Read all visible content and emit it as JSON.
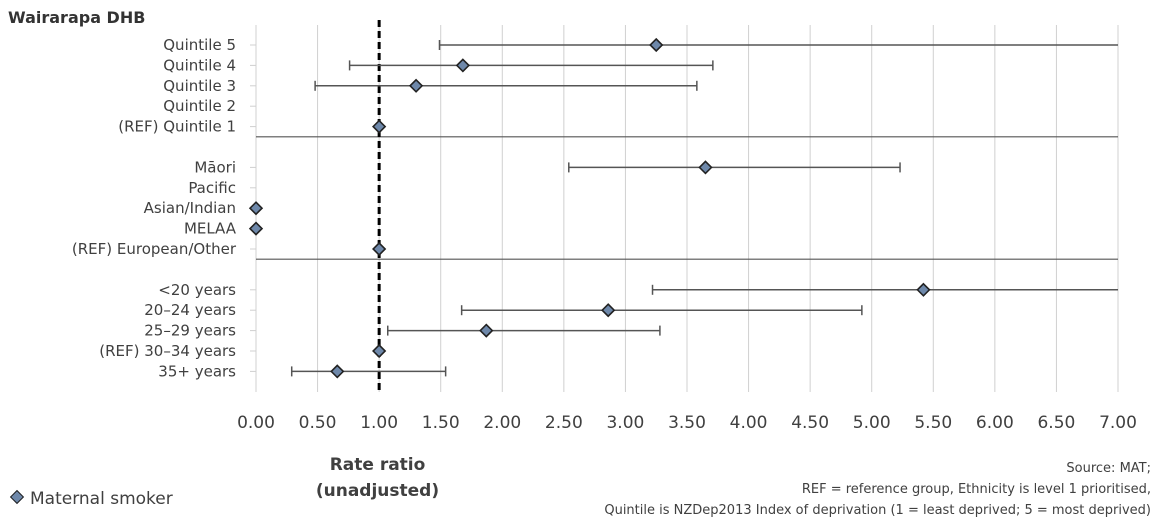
{
  "chart_data": {
    "type": "scatter",
    "title": "Wairarapa DHB",
    "xlabel_line1": "Rate ratio",
    "xlabel_line2": "(unadjusted)",
    "xlim": [
      0,
      7
    ],
    "x_ticks": [
      "0.00",
      "0.50",
      "1.00",
      "1.50",
      "2.00",
      "2.50",
      "3.00",
      "3.50",
      "4.00",
      "4.50",
      "5.00",
      "5.50",
      "6.00",
      "6.50",
      "7.00"
    ],
    "reference_line": 1.0,
    "legend": {
      "label": "Maternal smoker",
      "placement": "bottom-left"
    },
    "grid": true,
    "groups": [
      {
        "items": [
          {
            "label": "Quintile 5",
            "value": 3.25,
            "lower": 1.49,
            "upper": 7.0
          },
          {
            "label": "Quintile 4",
            "value": 1.68,
            "lower": 0.76,
            "upper": 3.71
          },
          {
            "label": "Quintile 3",
            "value": 1.3,
            "lower": 0.48,
            "upper": 3.58
          },
          {
            "label": "Quintile 2",
            "value": null,
            "lower": null,
            "upper": null
          },
          {
            "label": "(REF) Quintile 1",
            "value": 1.0,
            "lower": null,
            "upper": null
          }
        ]
      },
      {
        "items": [
          {
            "label": "Māori",
            "value": 3.65,
            "lower": 2.54,
            "upper": 5.23
          },
          {
            "label": "Pacific",
            "value": null,
            "lower": null,
            "upper": null
          },
          {
            "label": "Asian/Indian",
            "value": 0.0,
            "lower": null,
            "upper": null
          },
          {
            "label": "MELAA",
            "value": 0.0,
            "lower": null,
            "upper": null
          },
          {
            "label": "(REF) European/Other",
            "value": 1.0,
            "lower": null,
            "upper": null
          }
        ]
      },
      {
        "items": [
          {
            "label": "<20 years",
            "value": 5.42,
            "lower": 3.22,
            "upper": 7.0
          },
          {
            "label": "20–24 years",
            "value": 2.86,
            "lower": 1.67,
            "upper": 4.92
          },
          {
            "label": "25–29 years",
            "value": 1.87,
            "lower": 1.07,
            "upper": 3.28
          },
          {
            "label": "(REF) 30–34 years",
            "value": 1.0,
            "lower": null,
            "upper": null
          },
          {
            "label": "35+ years",
            "value": 0.66,
            "lower": 0.29,
            "upper": 1.54
          }
        ]
      }
    ],
    "source_lines": [
      "Source: MAT;",
      "REF = reference group, Ethnicity is level 1 prioritised,",
      "Quintile is NZDep2013 Index of deprivation (1 = least deprived; 5 = most deprived)"
    ]
  },
  "colors": {
    "marker_fill": "#6e88aa",
    "marker_stroke": "#222222",
    "grid": "#d0d0d0",
    "separator": "#555555",
    "error_bar": "#555555",
    "reference_line": "#000000"
  }
}
